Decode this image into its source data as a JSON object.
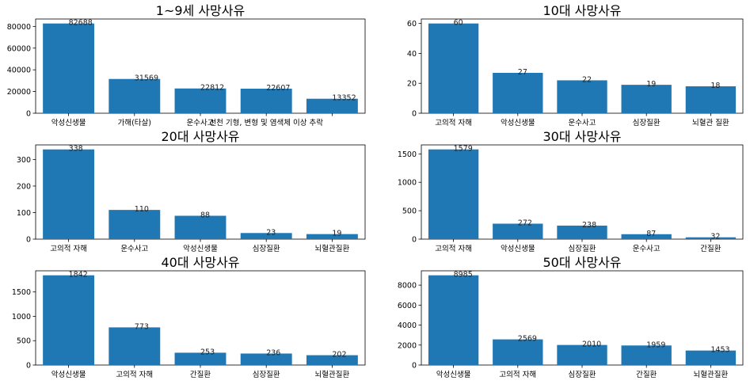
{
  "colors": {
    "bar": "#1f77b4",
    "axis": "#000000",
    "background": "#ffffff"
  },
  "chart_data": [
    {
      "type": "bar",
      "title": "1~9세 사망사유",
      "categories": [
        "악성신생물",
        "가해(타살)",
        "운수사고",
        "선천 기형, 변형 및 염색체 이상 추락",
        ""
      ],
      "values": [
        82688,
        31569,
        22812,
        22607,
        13352
      ],
      "ylim": [
        0,
        86822
      ],
      "yticks": [
        0,
        20000,
        40000,
        60000,
        80000
      ],
      "xlabel": "",
      "ylabel": ""
    },
    {
      "type": "bar",
      "title": "10대 사망사유",
      "categories": [
        "고의적 자해",
        "악성신생물",
        "운수사고",
        "심장질환",
        "뇌혈관 질환"
      ],
      "values": [
        60,
        27,
        22,
        19,
        18
      ],
      "ylim": [
        0,
        63
      ],
      "yticks": [
        0,
        20,
        40,
        60
      ],
      "xlabel": "",
      "ylabel": ""
    },
    {
      "type": "bar",
      "title": "20대  사망사유",
      "categories": [
        "고의적 자해",
        "운수사고",
        "악성신생물",
        "심장질환",
        "뇌혈관질환"
      ],
      "values": [
        338,
        110,
        88,
        23,
        19
      ],
      "ylim": [
        0,
        355
      ],
      "yticks": [
        0,
        100,
        200,
        300
      ],
      "xlabel": "",
      "ylabel": ""
    },
    {
      "type": "bar",
      "title": "30대 사망사유",
      "categories": [
        "고의적 자해",
        "악성신생물",
        "심장질환",
        "운수사고",
        "간질환"
      ],
      "values": [
        1579,
        272,
        238,
        87,
        32
      ],
      "ylim": [
        0,
        1658
      ],
      "yticks": [
        0,
        500,
        1000,
        1500
      ],
      "xlabel": "",
      "ylabel": ""
    },
    {
      "type": "bar",
      "title": "40대 사망사유",
      "categories": [
        "악성신생물",
        "고의적 자해",
        "간질환",
        "심장질환",
        "뇌혈관질환"
      ],
      "values": [
        1842,
        773,
        253,
        236,
        202
      ],
      "ylim": [
        0,
        1934
      ],
      "yticks": [
        0,
        500,
        1000,
        1500
      ],
      "xlabel": "",
      "ylabel": ""
    },
    {
      "type": "bar",
      "title": "50대 사망사유",
      "categories": [
        "악성신생물",
        "고의적 자해",
        "심장질환",
        "간질환",
        "뇌혈관질환"
      ],
      "values": [
        8985,
        2569,
        2010,
        1959,
        1453
      ],
      "ylim": [
        0,
        9434
      ],
      "yticks": [
        0,
        2000,
        4000,
        6000,
        8000
      ],
      "xlabel": "",
      "ylabel": ""
    }
  ]
}
